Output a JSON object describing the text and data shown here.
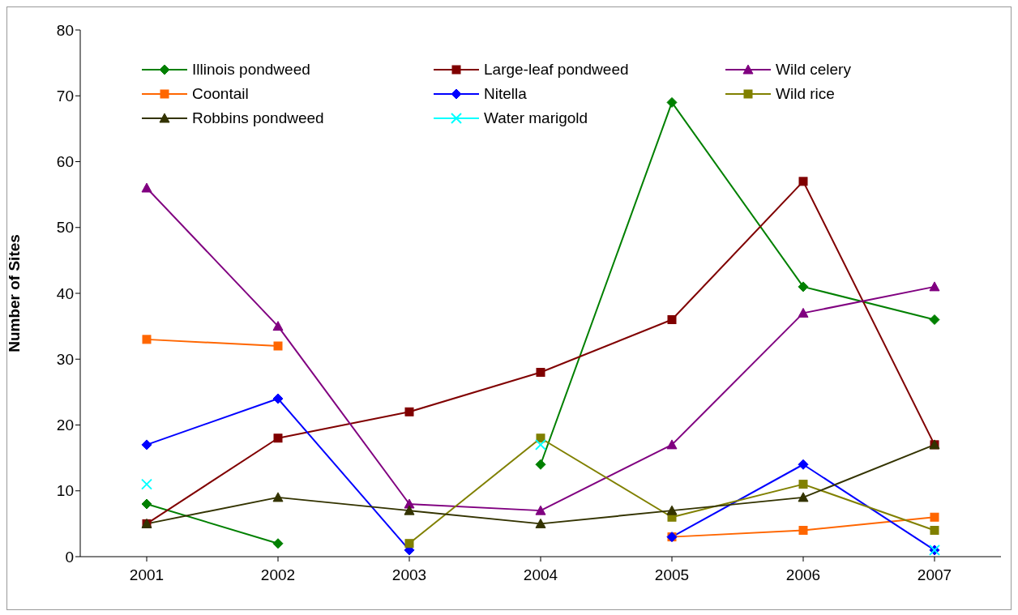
{
  "chart_data": {
    "type": "line",
    "ylabel": "Number of Sites",
    "categories": [
      "2001",
      "2002",
      "2003",
      "2004",
      "2005",
      "2006",
      "2007"
    ],
    "series": [
      {
        "name": "Illinois pondweed",
        "color": "#008000",
        "marker": "diamond",
        "values": [
          8,
          2,
          null,
          14,
          69,
          41,
          36
        ]
      },
      {
        "name": "Large-leaf pondweed",
        "color": "#800000",
        "marker": "square",
        "values": [
          5,
          18,
          22,
          28,
          36,
          57,
          17
        ]
      },
      {
        "name": "Wild celery",
        "color": "#800080",
        "marker": "triangle",
        "values": [
          56,
          35,
          8,
          7,
          17,
          37,
          41
        ]
      },
      {
        "name": "Coontail",
        "color": "#ff6600",
        "marker": "square",
        "values": [
          33,
          32,
          null,
          null,
          3,
          4,
          6
        ]
      },
      {
        "name": "Nitella",
        "color": "#0000ff",
        "marker": "diamond",
        "values": [
          17,
          24,
          1,
          null,
          3,
          14,
          1
        ]
      },
      {
        "name": "Wild rice",
        "color": "#808000",
        "marker": "square",
        "values": [
          null,
          null,
          2,
          18,
          6,
          11,
          4
        ]
      },
      {
        "name": "Robbins pondweed",
        "color": "#333300",
        "marker": "triangle",
        "values": [
          5,
          9,
          7,
          5,
          7,
          9,
          17
        ]
      },
      {
        "name": "Water marigold",
        "color": "#00ffff",
        "marker": "cross",
        "values": [
          11,
          null,
          null,
          17,
          null,
          null,
          1
        ]
      }
    ],
    "ylim": [
      0,
      80
    ],
    "yticks": [
      0,
      10,
      20,
      30,
      40,
      50,
      60,
      70,
      80
    ],
    "grid": false,
    "legend": "top"
  }
}
